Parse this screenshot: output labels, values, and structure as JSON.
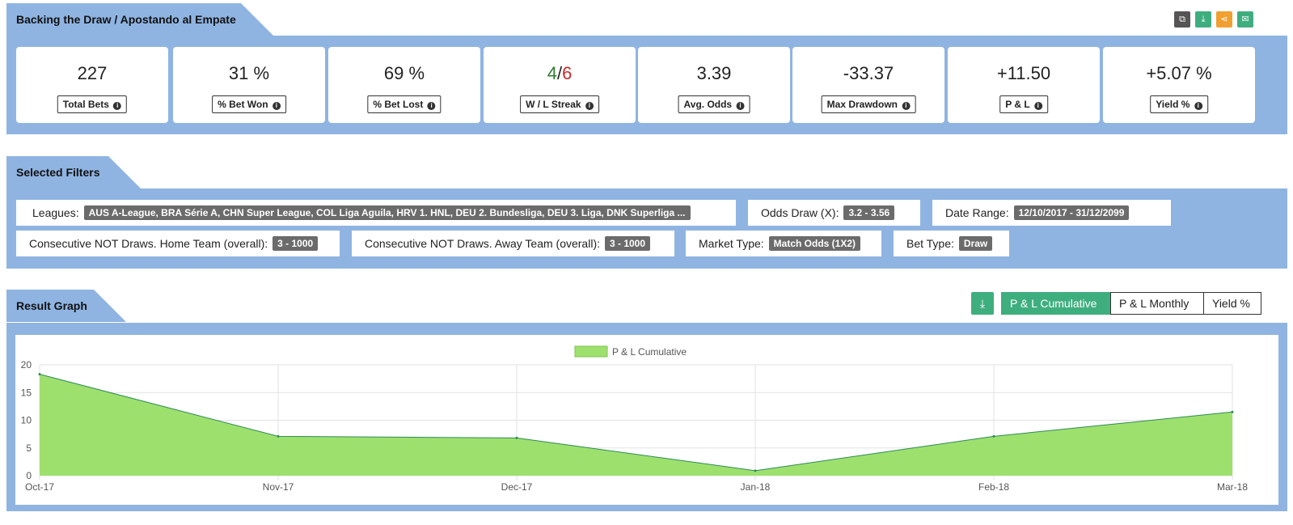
{
  "header": {
    "title": "Backing the Draw / Apostando al Empate",
    "icons": [
      "copy-icon",
      "download-icon",
      "share-icon",
      "email-icon"
    ]
  },
  "stats": [
    {
      "value": "227",
      "label": "Total Bets"
    },
    {
      "value": "31 %",
      "label": "% Bet Won"
    },
    {
      "value": "69 %",
      "label": "% Bet Lost"
    },
    {
      "value_win": "4",
      "value_sep": "/",
      "value_loss": "6",
      "label": "W / L Streak"
    },
    {
      "value": "3.39",
      "label": "Avg. Odds"
    },
    {
      "value": "-33.37",
      "label": "Max Drawdown"
    },
    {
      "value": "+11.50",
      "label": "P & L"
    },
    {
      "value": "+5.07 %",
      "label": "Yield %"
    }
  ],
  "filters": {
    "title": "Selected Filters",
    "items": [
      {
        "label": "Leagues:",
        "value": "AUS A-League, BRA Série A, CHN Super League, COL Liga Aguila, HRV 1. HNL, DEU 2. Bundesliga, DEU 3. Liga, DNK Superliga ..."
      },
      {
        "label": "Odds Draw (X):",
        "value": "3.2 - 3.56"
      },
      {
        "label": "Date Range:",
        "value": "12/10/2017 - 31/12/2099"
      },
      {
        "label": "Consecutive NOT Draws. Home Team (overall):",
        "value": "3 - 1000"
      },
      {
        "label": "Consecutive NOT Draws. Away Team (overall):",
        "value": "3 - 1000"
      },
      {
        "label": "Market Type:",
        "value": "Match Odds (1X2)"
      },
      {
        "label": "Bet Type:",
        "value": "Draw"
      }
    ]
  },
  "graph": {
    "title": "Result Graph",
    "buttons": [
      "P & L Cumulative",
      "P & L Monthly",
      "Yield %"
    ],
    "active_button": "P & L Cumulative"
  },
  "colors": {
    "panel": "#8fb4e2",
    "area_fill": "#9ee06e",
    "area_line": "#2e8b57",
    "active": "#3fae7f",
    "green": "#2e7d32",
    "red": "#c62828",
    "orange": "#f0a030"
  },
  "chart_data": {
    "type": "area",
    "x": [
      "Oct-17",
      "Nov-17",
      "Dec-17",
      "Jan-18",
      "Feb-18",
      "Mar-18"
    ],
    "series": [
      {
        "name": "P & L Cumulative",
        "values": [
          18.3,
          7.1,
          6.8,
          0.9,
          7.1,
          11.5
        ]
      }
    ],
    "ylim": [
      0,
      20
    ],
    "yticks": [
      0,
      5,
      10,
      15,
      20
    ],
    "grid": true,
    "legend": "top-center"
  }
}
